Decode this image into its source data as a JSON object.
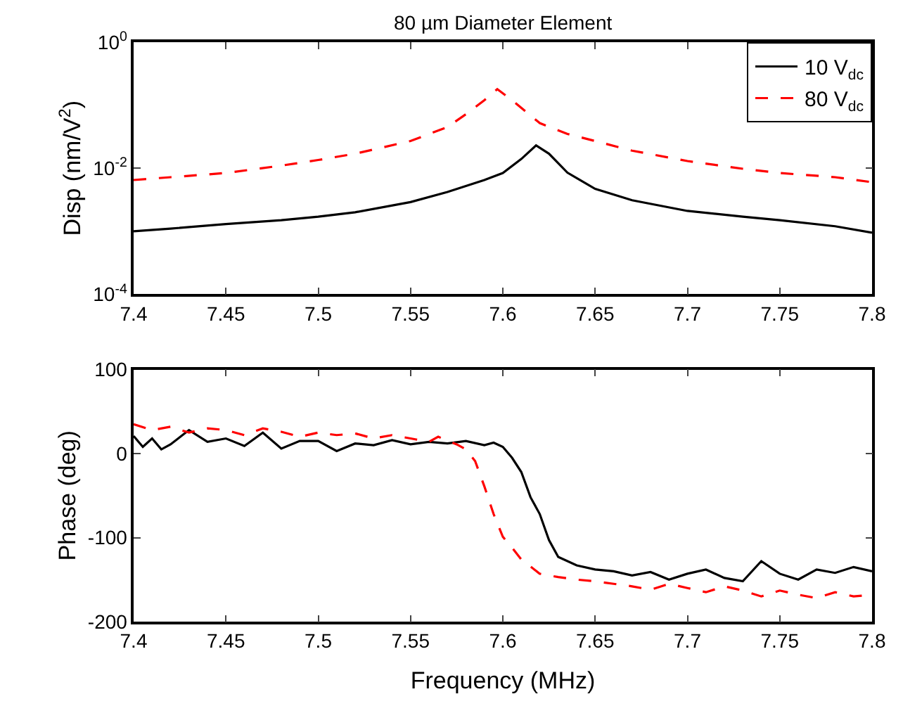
{
  "chart_data": [
    {
      "type": "line",
      "title": "80 µm Diameter Element",
      "ylabel": "Disp (nm/V$^{2}$)",
      "log": "y",
      "legend": "top right",
      "marker": "none",
      "xlim": [
        7.4,
        7.8
      ],
      "xticks": [
        7.4,
        7.45,
        7.5,
        7.55,
        7.6,
        7.65,
        7.7,
        7.75,
        7.8
      ],
      "ylim": [
        0.0001,
        1
      ],
      "yticks": [
        {
          "value": 1,
          "label": "10$^{0}$"
        },
        {
          "value": 0.01,
          "label": "10$^{-2}$"
        },
        {
          "value": 0.0001,
          "label": "10$^{-4}$"
        }
      ],
      "series": [
        {
          "name": "10 V$_{dc}$",
          "color": "#000000",
          "line_style": "solid",
          "x": [
            7.4,
            7.42,
            7.45,
            7.48,
            7.5,
            7.52,
            7.55,
            7.57,
            7.59,
            7.6,
            7.61,
            7.618,
            7.625,
            7.635,
            7.65,
            7.67,
            7.7,
            7.73,
            7.75,
            7.78,
            7.8
          ],
          "values": [
            0.001,
            0.0011,
            0.0013,
            0.0015,
            0.0017,
            0.002,
            0.0029,
            0.0042,
            0.0065,
            0.0084,
            0.014,
            0.023,
            0.017,
            0.0085,
            0.0047,
            0.0031,
            0.0021,
            0.0017,
            0.0015,
            0.0012,
            0.00095
          ]
        },
        {
          "name": "80 V$_{dc}$",
          "color": "#ff0000",
          "line_style": "dashed",
          "x": [
            7.4,
            7.42,
            7.45,
            7.48,
            7.5,
            7.52,
            7.55,
            7.57,
            7.58,
            7.59,
            7.597,
            7.605,
            7.62,
            7.635,
            7.65,
            7.67,
            7.7,
            7.73,
            7.75,
            7.78,
            7.8
          ],
          "values": [
            0.0065,
            0.0072,
            0.0084,
            0.011,
            0.0135,
            0.017,
            0.027,
            0.045,
            0.072,
            0.12,
            0.18,
            0.12,
            0.052,
            0.035,
            0.027,
            0.019,
            0.013,
            0.0098,
            0.0084,
            0.0072,
            0.006
          ]
        }
      ]
    },
    {
      "type": "line",
      "xlabel": "Frequency (MHz)",
      "ylabel": "Phase (deg)",
      "legend": false,
      "marker": "none",
      "xlim": [
        7.4,
        7.8
      ],
      "xticks": [
        7.4,
        7.45,
        7.5,
        7.55,
        7.6,
        7.65,
        7.7,
        7.75,
        7.8
      ],
      "ylim": [
        -200,
        100
      ],
      "yticks": [
        -200,
        -100,
        0,
        100
      ],
      "series": [
        {
          "color": "#000000",
          "line_style": "solid",
          "x": [
            7.4,
            7.405,
            7.41,
            7.415,
            7.42,
            7.43,
            7.44,
            7.45,
            7.46,
            7.47,
            7.48,
            7.49,
            7.5,
            7.51,
            7.52,
            7.53,
            7.54,
            7.55,
            7.56,
            7.57,
            7.58,
            7.59,
            7.595,
            7.6,
            7.605,
            7.61,
            7.615,
            7.62,
            7.625,
            7.63,
            7.64,
            7.65,
            7.66,
            7.67,
            7.68,
            7.69,
            7.7,
            7.71,
            7.72,
            7.73,
            7.74,
            7.75,
            7.76,
            7.77,
            7.78,
            7.79,
            7.8
          ],
          "values": [
            21,
            8,
            18,
            5,
            11,
            28,
            14,
            18,
            9,
            25,
            6,
            15,
            15,
            3,
            12,
            10,
            16,
            11,
            14,
            12,
            15,
            10,
            13,
            8,
            -5,
            -22,
            -52,
            -72,
            -103,
            -123,
            -133,
            -138,
            -140,
            -145,
            -141,
            -150,
            -143,
            -138,
            -148,
            -152,
            -128,
            -143,
            -150,
            -138,
            -142,
            -135,
            -140
          ]
        },
        {
          "color": "#ff0000",
          "line_style": "dashed",
          "x": [
            7.4,
            7.41,
            7.42,
            7.43,
            7.44,
            7.45,
            7.46,
            7.47,
            7.48,
            7.49,
            7.5,
            7.51,
            7.52,
            7.53,
            7.54,
            7.55,
            7.56,
            7.565,
            7.575,
            7.58,
            7.585,
            7.59,
            7.595,
            7.6,
            7.605,
            7.61,
            7.62,
            7.63,
            7.64,
            7.65,
            7.66,
            7.67,
            7.68,
            7.69,
            7.7,
            7.71,
            7.72,
            7.73,
            7.74,
            7.75,
            7.76,
            7.77,
            7.78,
            7.79,
            7.8
          ],
          "values": [
            35,
            28,
            32,
            25,
            30,
            28,
            22,
            30,
            26,
            20,
            25,
            22,
            24,
            18,
            22,
            18,
            14,
            20,
            11,
            5,
            -9,
            -39,
            -72,
            -99,
            -112,
            -126,
            -143,
            -147,
            -150,
            -152,
            -155,
            -158,
            -162,
            -155,
            -160,
            -165,
            -158,
            -163,
            -170,
            -163,
            -168,
            -172,
            -165,
            -170,
            -168
          ]
        }
      ]
    }
  ]
}
